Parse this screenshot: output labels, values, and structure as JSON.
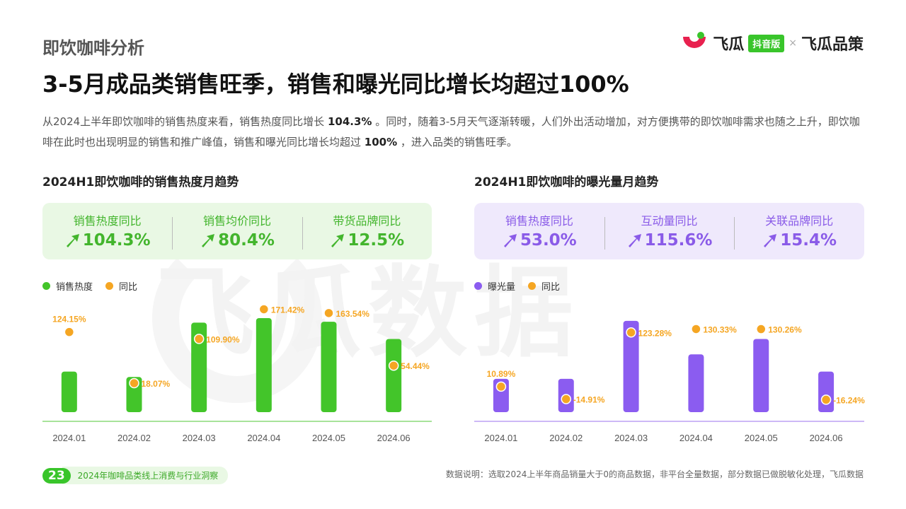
{
  "header": {
    "section_label": "即饮咖啡分析",
    "brand": {
      "name1": "飞瓜",
      "badge": "抖音版",
      "separator": "×",
      "name2": "飞瓜品策"
    },
    "headline": "3-5月成品类销售旺季，销售和曝光同比增长均超过100%"
  },
  "intro": {
    "part1": "从2024上半年即饮咖啡的销售热度来看，销售热度同比增长 ",
    "bold1": "104.3%",
    "part2": " 。同时，随着3-5月天气逐渐转暖，人们外出活动增加，对方便携带的即饮咖啡需求也随之上升，即饮咖啡在此时也出现明显的销售和推广峰值，销售和曝光同比增长均超过 ",
    "bold2": "100%",
    "part3": " ，进入品类的销售旺季。"
  },
  "watermark": "飞瓜数据",
  "colors": {
    "green": "#43c52a",
    "purple": "#8b5cf0",
    "orange": "#f5a623",
    "axis_green": "#a8e39a",
    "axis_purple": "#cdb8f6"
  },
  "left_panel": {
    "title": "2024H1即饮咖啡的销售热度月趋势",
    "kpis": [
      {
        "label": "销售热度同比",
        "value": "104.3%"
      },
      {
        "label": "销售均价同比",
        "value": "80.4%"
      },
      {
        "label": "带货品牌同比",
        "value": "12.5%"
      }
    ],
    "legend": {
      "bar": "销售热度",
      "dot": "同比"
    }
  },
  "right_panel": {
    "title": "2024H1即饮咖啡的曝光量月趋势",
    "kpis": [
      {
        "label": "销售热度同比",
        "value": "53.0%"
      },
      {
        "label": "互动量同比",
        "value": "115.6%"
      },
      {
        "label": "关联品牌同比",
        "value": "15.4%"
      }
    ],
    "legend": {
      "bar": "曝光量",
      "dot": "同比"
    }
  },
  "chart_data": [
    {
      "type": "bar",
      "title": "2024H1即饮咖啡的销售热度月趋势",
      "categories": [
        "2024.01",
        "2024.02",
        "2024.03",
        "2024.04",
        "2024.05",
        "2024.06"
      ],
      "series": [
        {
          "name": "销售热度",
          "kind": "bar",
          "values": [
            44,
            38,
            98,
            103,
            99,
            80
          ]
        },
        {
          "name": "同比",
          "kind": "dot",
          "values": [
            124.15,
            18.07,
            109.9,
            171.42,
            163.54,
            54.44
          ],
          "labels": [
            "124.15%",
            "18.07%",
            "109.90%",
            "171.42%",
            "163.54%",
            "54.44%"
          ]
        }
      ],
      "legend": "top-left"
    },
    {
      "type": "bar",
      "title": "2024H1即饮咖啡的曝光量月趋势",
      "categories": [
        "2024.01",
        "2024.02",
        "2024.03",
        "2024.04",
        "2024.05",
        "2024.06"
      ],
      "series": [
        {
          "name": "曝光量",
          "kind": "bar",
          "values": [
            36,
            36,
            100,
            63,
            80,
            44
          ]
        },
        {
          "name": "同比",
          "kind": "dot",
          "values": [
            10.89,
            -14.91,
            123.28,
            130.33,
            130.26,
            -16.24
          ],
          "labels": [
            "10.89%",
            "-14.91%",
            "123.28%",
            "130.33%",
            "130.26%",
            "-16.24%"
          ]
        }
      ],
      "legend": "top-left"
    }
  ],
  "footer": {
    "page_number": "23",
    "report_title": "2024年咖啡品类线上消费与行业洞察",
    "note": "数据说明：选取2024上半年商品销量大于0的商品数据，非平台全量数据，部分数据已做脱敏化处理，飞瓜数据"
  }
}
